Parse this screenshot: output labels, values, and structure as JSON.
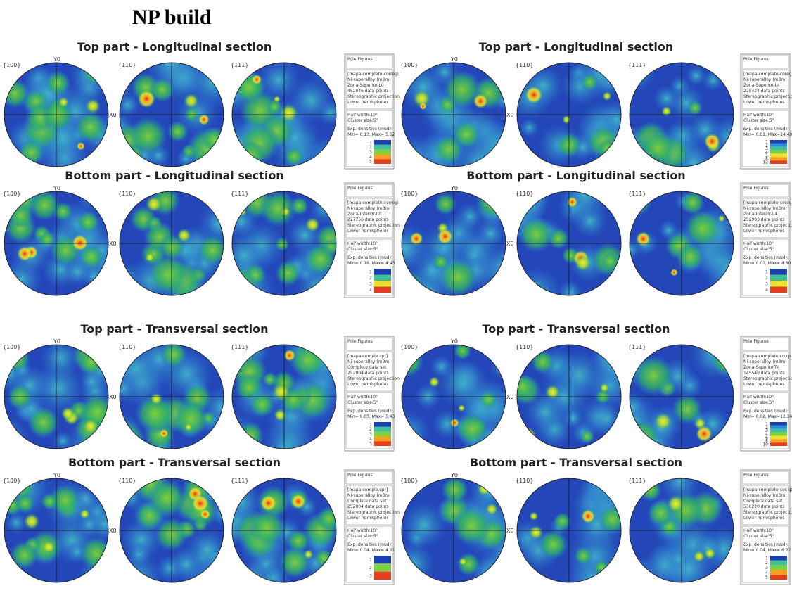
{
  "title": "NP build",
  "panels": [
    {
      "title": "Top part - Longitudinal section",
      "figures": [
        "{100}",
        "{110}",
        "{111}"
      ],
      "axis_y": "Y0",
      "axis_x": "X0",
      "legend": {
        "header": "Pole Figures",
        "info": [
          "[mapa-completo-corregi",
          "Ni-superalloy (m3m)",
          "Zona-Superior-L0",
          "452046 data points",
          "Stereographic projection",
          "Lower hemispheres"
        ],
        "params": [
          "Half width:10°",
          "Cluster size:5°"
        ],
        "densities": [
          "Exp. densities (mud):",
          "Min= 0.13, Max= 5.52"
        ],
        "scale": [
          "1",
          "2",
          "3",
          "4",
          "5"
        ]
      }
    },
    {
      "title": "Top part - Longitudinal section",
      "figures": [
        "{100}",
        "{110}",
        "{111}"
      ],
      "axis_y": "Y0",
      "axis_x": "X0",
      "legend": {
        "header": "Pole Figures",
        "info": [
          "[mapa-completo-coreg",
          "Ni-superalloy (m3m)",
          "Zona-Superior-L4",
          "225424 data points",
          "Stereographic projection",
          "Lower hemispheres"
        ],
        "params": [
          "Half width:10°",
          "Cluster size:5°"
        ],
        "densities": [
          "Exp. densities (mud):",
          "Min= 0.01, Max=14.49"
        ],
        "scale": [
          "1",
          "2",
          "3",
          "4",
          "5",
          "8",
          "12"
        ]
      }
    },
    {
      "title": "Bottom part - Longitudinal section",
      "figures": [
        "{100}",
        "{110}",
        "{111}"
      ],
      "axis_y": "Y0",
      "axis_x": "X0",
      "legend": {
        "header": "Pole Figures",
        "info": [
          "[mapa-completo-corregi",
          "Ni-superalloy (m3m)",
          "Zona-Inferior-L0",
          "227756 data points",
          "Stereographic projection",
          "Lower hemispheres"
        ],
        "params": [
          "Half width:10°",
          "Cluster size:5°"
        ],
        "densities": [
          "Exp. densities (mud):",
          "Min= 0.16, Max= 4.43"
        ],
        "scale": [
          "1",
          "2",
          "3",
          "4"
        ]
      }
    },
    {
      "title": "Bottom part - Longitudinal section",
      "figures": [
        "{100}",
        "{110}",
        "{111}"
      ],
      "axis_y": "Y0",
      "axis_x": "X0",
      "legend": {
        "header": "Pole Figures",
        "info": [
          "[mapa-completo-coreg",
          "Ni-superalloy (m3m)",
          "Zona-Inferior-L4",
          "252983 data points",
          "Stereographic projection",
          "Lower hemispheres"
        ],
        "params": [
          "Half width:10°",
          "Cluster size:5°"
        ],
        "densities": [
          "Exp. densities (mud):",
          "Min= 0.03, Max= 4.80"
        ],
        "scale": [
          "1",
          "2",
          "3",
          "4"
        ]
      }
    },
    {
      "title": "Top part - Transversal section",
      "figures": [
        "{100}",
        "{110}",
        "{111}"
      ],
      "axis_y": "Y0",
      "axis_x": "X0",
      "legend": {
        "header": "Pole Figures",
        "info": [
          "[mapa-comple.cpr]",
          "Ni-superalloy (m3m)",
          "Complete data set",
          "252004 data points",
          "Stereographic projection",
          "Lower hemispheres"
        ],
        "params": [
          "Half width:10°",
          "Cluster size:5°"
        ],
        "densities": [
          "Exp. densities (mud):",
          "Min= 0.05, Max= 5.43"
        ],
        "scale": [
          "1",
          "2",
          "3",
          "4",
          "5"
        ]
      }
    },
    {
      "title": "Top part - Transversal section",
      "figures": [
        "{100}",
        "{110}",
        "{111}"
      ],
      "axis_y": "Y0",
      "axis_x": "X0",
      "legend": {
        "header": "Pole Figures",
        "info": [
          "[mapa-completo-co.cp",
          "Ni-superalloy (m3m)",
          "Zona-Superior-T4",
          "145540 data points",
          "Stereographic projection",
          "Lower hemispheres"
        ],
        "params": [
          "Half width:10°",
          "Cluster size:5°"
        ],
        "densities": [
          "Exp. densities (mud):",
          "Min= 0.02, Max=12.34"
        ],
        "scale": [
          "1",
          "2",
          "3",
          "4",
          "6",
          "8",
          "10"
        ]
      }
    },
    {
      "title": "Bottom part - Transversal section",
      "figures": [
        "{100}",
        "{110}",
        "{111}"
      ],
      "axis_y": "Y0",
      "axis_x": "X0",
      "legend": {
        "header": "Pole Figures",
        "info": [
          "[mapa-comple.cpr]",
          "Ni-superalloy (m3m)",
          "Complete data set",
          "252004 data points",
          "Stereographic projection",
          "Lower hemispheres"
        ],
        "params": [
          "Half width:10°",
          "Cluster size:5°"
        ],
        "densities": [
          "Exp. densities (mud):",
          "Min= 0.04, Max= 4.31"
        ],
        "scale": [
          "1",
          "2",
          "3"
        ]
      }
    },
    {
      "title": "Bottom part - Transversal section",
      "figures": [
        "{100}",
        "{110}",
        "{111}"
      ],
      "axis_y": "Y0",
      "axis_x": "X0",
      "legend": {
        "header": "Pole Figures",
        "info": [
          "[mapa-completo-cor.cp",
          "Ni-superalloy (m3m)",
          "Complete data set",
          "536220 data points",
          "Stereographic projection",
          "Lower hemispheres"
        ],
        "params": [
          "Half width:10°",
          "Cluster size:5°"
        ],
        "densities": [
          "Exp. densities (mud):",
          "Min= 0.04, Max= 6.27"
        ],
        "scale": [
          "1",
          "2",
          "3",
          "4",
          "5"
        ]
      }
    }
  ]
}
